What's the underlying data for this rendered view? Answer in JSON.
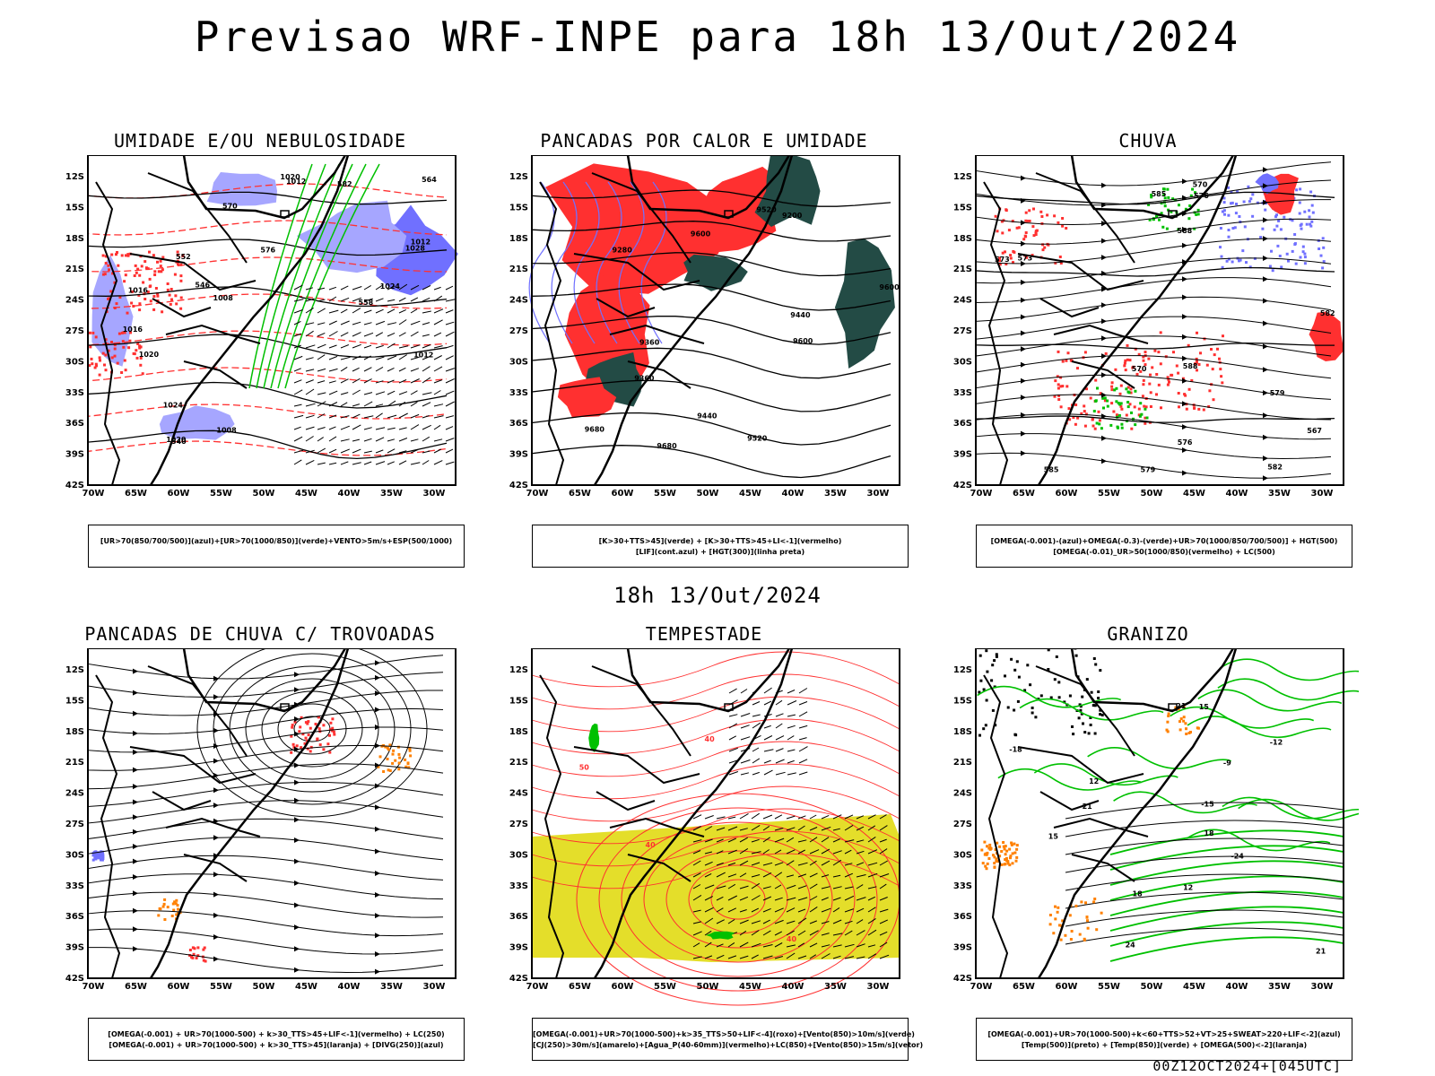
{
  "header": {
    "title": "Previsao WRF-INPE  para 18h 13/Out/2024"
  },
  "middle": {
    "time_label": "18h 13/Out/2024"
  },
  "footer": {
    "stamp": "00Z12OCT2024+[045UTC]"
  },
  "axes": {
    "lon_labels": [
      "70W",
      "65W",
      "60W",
      "55W",
      "50W",
      "45W",
      "40W",
      "35W",
      "30W"
    ],
    "lat_labels": [
      "12S",
      "15S",
      "18S",
      "21S",
      "24S",
      "27S",
      "30S",
      "33S",
      "36S",
      "39S",
      "42S"
    ]
  },
  "colors": {
    "blue": "#7070ff",
    "lavender": "#a6a6ff",
    "green": "#00c000",
    "red": "#ff3030",
    "darkteal": "#234b45",
    "yellow": "#e4de2a",
    "orange": "#ff8000",
    "black": "#000000"
  },
  "panels": [
    {
      "id": "p1",
      "title": "UMIDADE E/OU NEBULOSIDADE",
      "legend": [
        "[UR>70(850/700/500)](azul)+[UR>70(1000/850)](verde)+VENTO>5m/s+ESP(500/1000)"
      ],
      "contour_labels": [
        "1012",
        "1008",
        "1020",
        "1012",
        "1016",
        "1020",
        "1024",
        "1028",
        "1016",
        "1020",
        "1024",
        "576",
        "582",
        "552",
        "558",
        "564",
        "570",
        "546",
        "540",
        "1012",
        "1008"
      ]
    },
    {
      "id": "p2",
      "title": "PANCADAS POR CALOR E UMIDADE",
      "legend": [
        "[K>30+TTS>45](verde) + [K>30+TTS>45+LI<-1](vermelho)",
        "[LIF](cont.azul) + [HGT(300)](linha preta)"
      ],
      "contour_labels": [
        "9600",
        "9600",
        "9520",
        "9600",
        "9520",
        "9440",
        "9360",
        "9280",
        "9200",
        "9680",
        "9680",
        "9440",
        "9360"
      ]
    },
    {
      "id": "p3",
      "title": "CHUVA",
      "legend": [
        "[OMEGA(-0.001)-(azul)+OMEGA(-0.3)-(verde)+UR>70(1000/850/700/500)] + HGT(500)",
        "[OMEGA(-0.01)_UR>50(1000/850)(vermelho) + LC(500)"
      ],
      "contour_labels": [
        "588",
        "588",
        "585",
        "582",
        "579",
        "576",
        "573",
        "570",
        "567",
        "585",
        "582",
        "579",
        "576",
        "573",
        "570"
      ]
    },
    {
      "id": "p4",
      "title": "PANCADAS DE CHUVA C/ TROVOADAS",
      "legend": [
        "[OMEGA(-0.001) + UR>70(1000-500) + k>30_TTS>45+LIF<-1](vermelho) + LC(250)",
        "[OMEGA(-0.001) + UR>70(1000-500) + k>30_TTS>45](laranja) + [DIVG(250)](azul)"
      ],
      "contour_labels": []
    },
    {
      "id": "p5",
      "title": "TEMPESTADE",
      "legend": [
        "[OMEGA(-0.001)+UR>70(1000-500)+k>35_TTS>50+LIF<-4](roxo)+[Vento(850)>10m/s](verde)",
        "[CJ(250)>30m/s](amarelo)+[Agua_P(40-60mm)](vermelho)+LC(850)+[Vento(850)>15m/s](vetor)"
      ],
      "contour_labels": [
        "40",
        "40",
        "40",
        "50"
      ]
    },
    {
      "id": "p6",
      "title": "GRANIZO",
      "legend": [
        "[OMEGA(-0.001)+UR>70(1000-500)+k<60+TTS>52+VT>25+SWEAT>220+LIF<-2](azul)",
        "[Temp(500)](preto) + [Temp(850)](verde) + [OMEGA(500)<-2](laranja)"
      ],
      "contour_labels": [
        "12",
        "15",
        "18",
        "12",
        "15",
        "18",
        "21",
        "24",
        "21",
        "-9",
        "-12",
        "-15",
        "-18",
        "-21",
        "-24"
      ]
    }
  ]
}
